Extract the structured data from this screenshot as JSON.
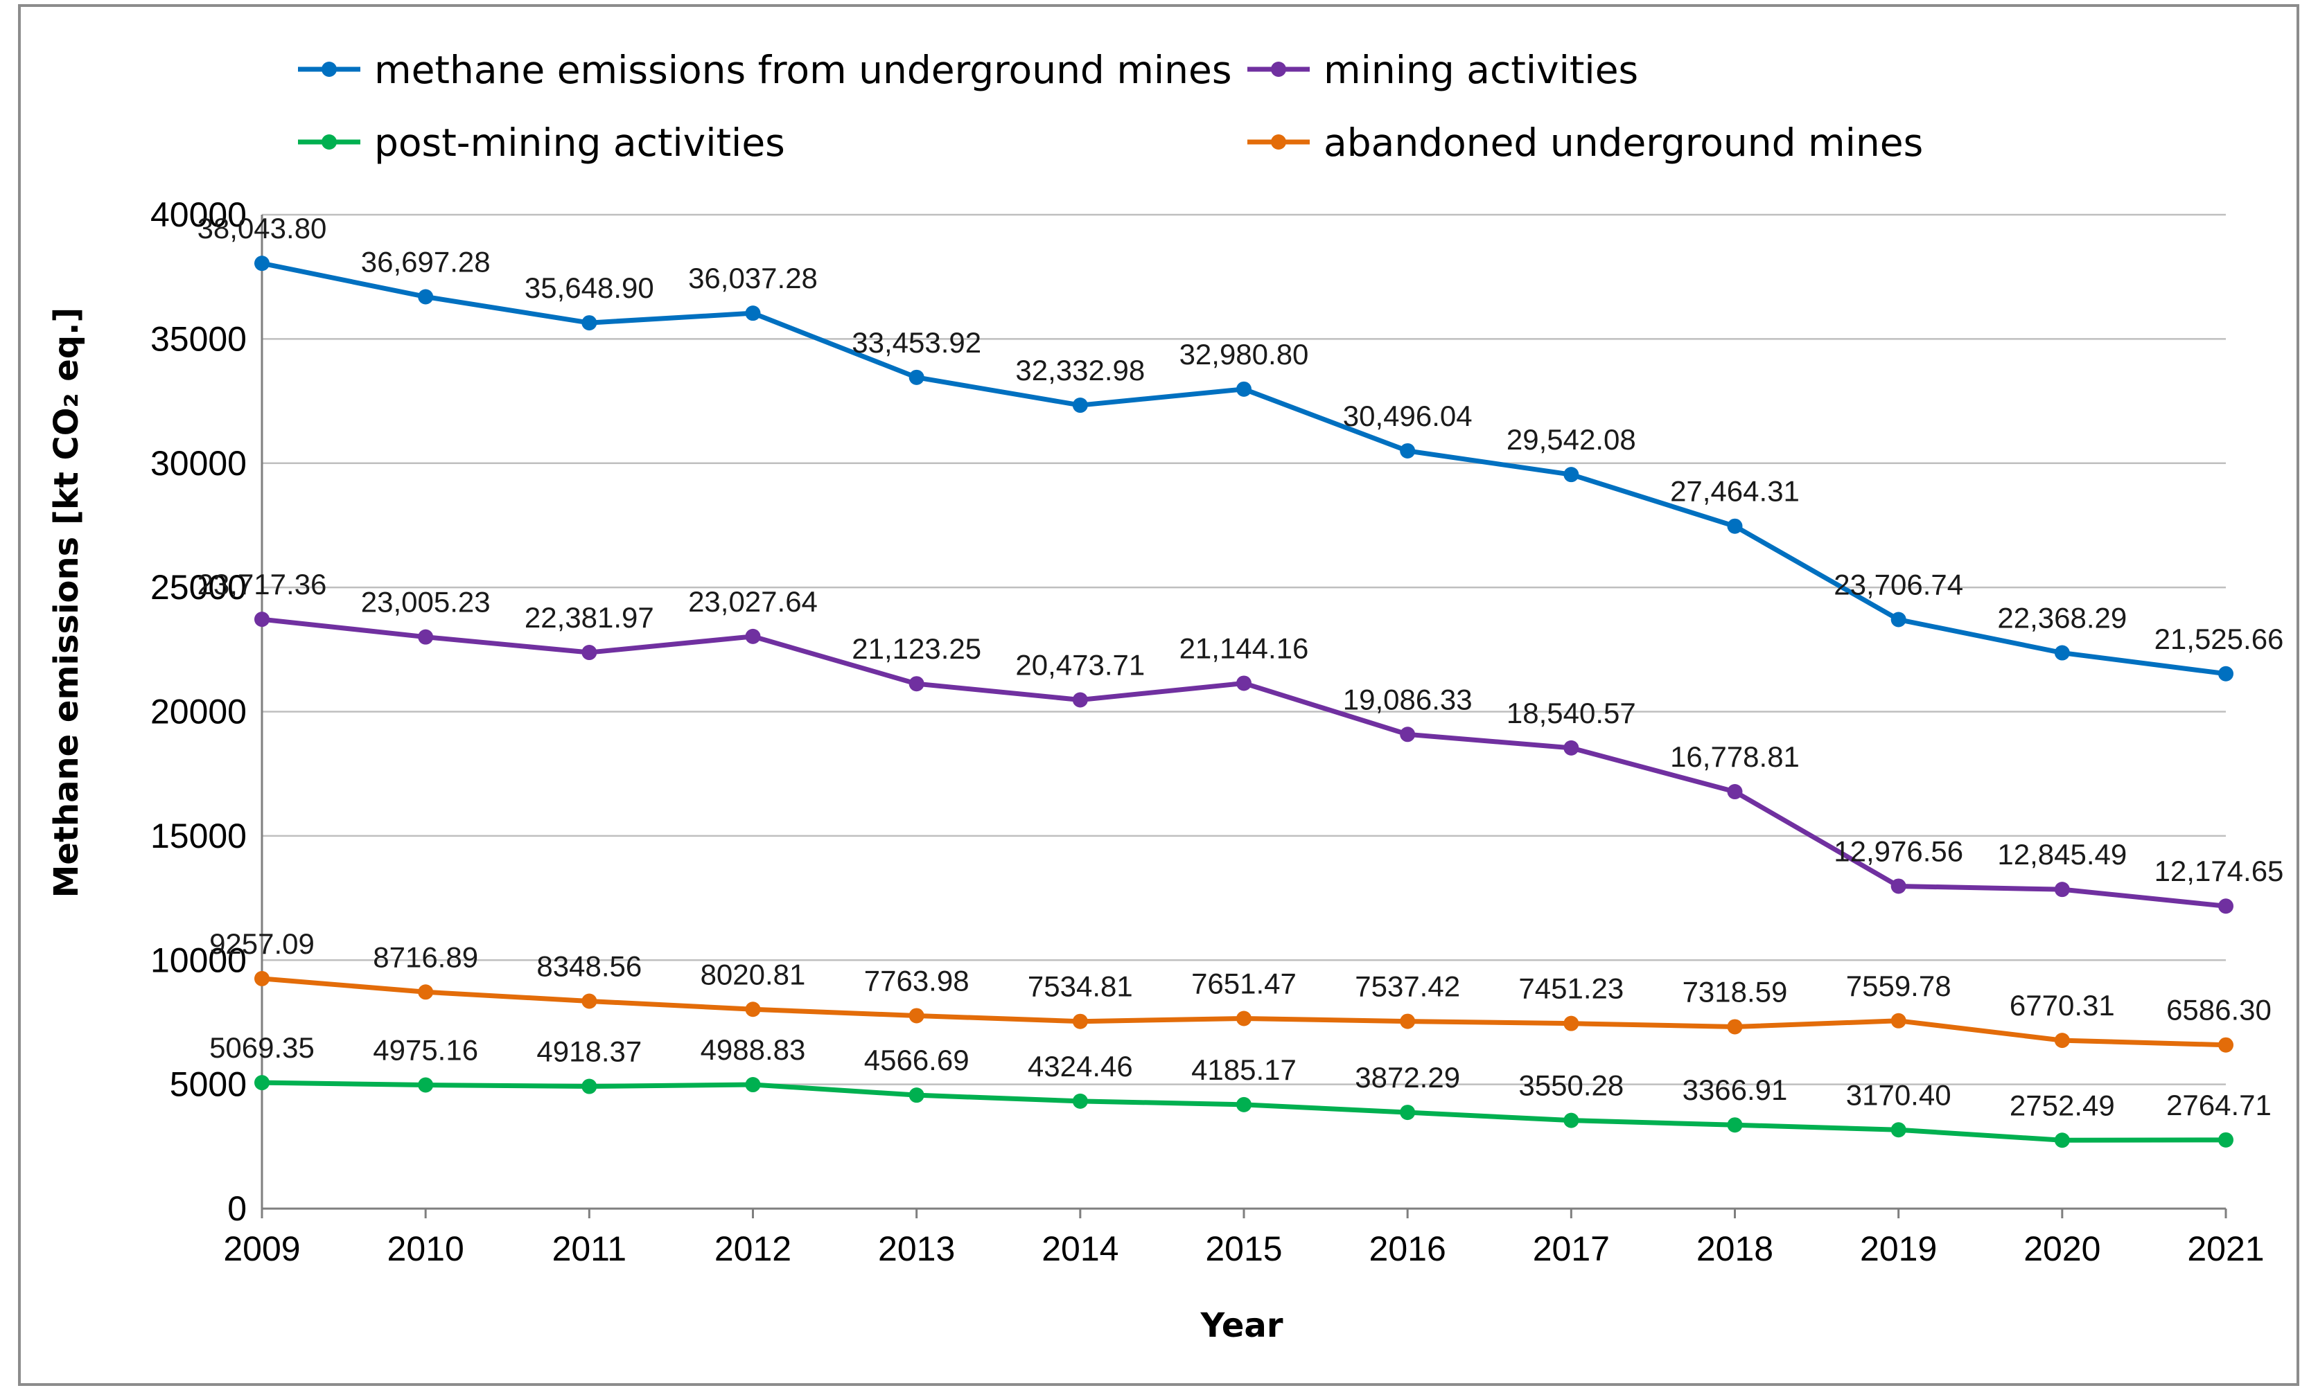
{
  "chart_data": {
    "type": "line",
    "title": "",
    "xlabel": "Year",
    "ylabel": "Methane emissions [kt CO₂ eq.]",
    "ylim": [
      0,
      40000
    ],
    "yticks": [
      0,
      5000,
      10000,
      15000,
      20000,
      25000,
      30000,
      35000,
      40000
    ],
    "ytick_labels": [
      "0",
      "5000",
      "10000",
      "15000",
      "20000",
      "25000",
      "30000",
      "35000",
      "40000"
    ],
    "grid": true,
    "legend_position": "top",
    "x": [
      "2009",
      "2010",
      "2011",
      "2012",
      "2013",
      "2014",
      "2015",
      "2016",
      "2017",
      "2018",
      "2019",
      "2020",
      "2021"
    ],
    "series": [
      {
        "name": "methane emissions from underground mines",
        "color": "#0070C0",
        "values": [
          38043.8,
          36697.28,
          35648.9,
          36037.28,
          33453.92,
          32332.98,
          32980.8,
          30496.04,
          29542.08,
          27464.31,
          23706.74,
          22368.29,
          21525.66
        ],
        "labels": [
          "38,043.80",
          "36,697.28",
          "35,648.90",
          "36,037.28",
          "33,453.92",
          "32,332.98",
          "32,980.80",
          "30,496.04",
          "29,542.08",
          "27,464.31",
          "23,706.74",
          "22,368.29",
          "21,525.66"
        ]
      },
      {
        "name": "mining activities",
        "color": "#7030A0",
        "values": [
          23717.36,
          23005.23,
          22381.97,
          23027.64,
          21123.25,
          20473.71,
          21144.16,
          19086.33,
          18540.57,
          16778.81,
          12976.56,
          12845.49,
          12174.65
        ],
        "labels": [
          "23,717.36",
          "23,005.23",
          "22,381.97",
          "23,027.64",
          "21,123.25",
          "20,473.71",
          "21,144.16",
          "19,086.33",
          "18,540.57",
          "16,778.81",
          "12,976.56",
          "12,845.49",
          "12,174.65"
        ]
      },
      {
        "name": "post-mining activities",
        "color": "#00B050",
        "values": [
          5069.35,
          4975.16,
          4918.37,
          4988.83,
          4566.69,
          4324.46,
          4185.17,
          3872.29,
          3550.28,
          3366.91,
          3170.4,
          2752.49,
          2764.71
        ],
        "labels": [
          "5069.35",
          "4975.16",
          "4918.37",
          "4988.83",
          "4566.69",
          "4324.46",
          "4185.17",
          "3872.29",
          "3550.28",
          "3366.91",
          "3170.40",
          "2752.49",
          "2764.71"
        ]
      },
      {
        "name": "abandoned underground mines",
        "color": "#E36C09",
        "values": [
          9257.09,
          8716.89,
          8348.56,
          8020.81,
          7763.98,
          7534.81,
          7651.47,
          7537.42,
          7451.23,
          7318.59,
          7559.78,
          6770.31,
          6586.3
        ],
        "labels": [
          "9257.09",
          "8716.89",
          "8348.56",
          "8020.81",
          "7763.98",
          "7534.81",
          "7651.47",
          "7537.42",
          "7451.23",
          "7318.59",
          "7559.78",
          "6770.31",
          "6586.30"
        ]
      }
    ]
  }
}
